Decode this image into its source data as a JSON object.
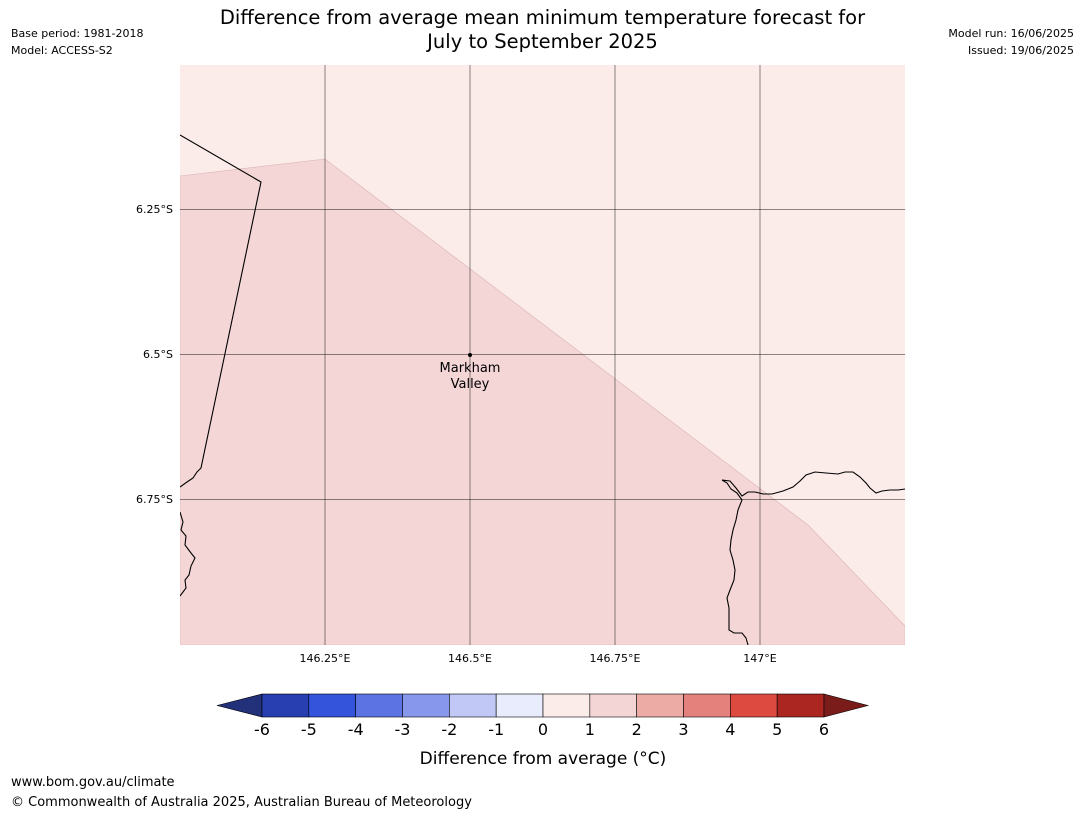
{
  "header": {
    "title_line1": "Difference from average mean minimum temperature forecast for",
    "title_line2": "July to September 2025",
    "base_period": "Base period: 1981-2018",
    "model": "Model: ACCESS-S2",
    "model_run": "Model run: 16/06/2025",
    "issued": "Issued: 19/06/2025"
  },
  "map": {
    "lat_labels": [
      "6.25°S",
      "6.5°S",
      "6.75°S"
    ],
    "lon_labels": [
      "146.25°E",
      "146.5°E",
      "146.75°E",
      "147°E"
    ],
    "place": {
      "name_line1": "Markham",
      "name_line2": "Valley"
    },
    "zone_colors": {
      "upper": "#fbebe9",
      "lower": "#f4d6d6"
    }
  },
  "legend": {
    "label": "Difference from average (°C)",
    "ticks": [
      "-6",
      "-5",
      "-4",
      "-3",
      "-2",
      "-1",
      "0",
      "1",
      "2",
      "3",
      "4",
      "5",
      "6"
    ],
    "colors": [
      "#23307a",
      "#273fb1",
      "#3454dc",
      "#5c74e3",
      "#8798ec",
      "#c1c8f6",
      "#e9ecfd",
      "#fbebe9",
      "#f4d5d5",
      "#edaba6",
      "#e4817d",
      "#dc4a40",
      "#ab2620",
      "#7a1c19"
    ]
  },
  "footer": {
    "url": "www.bom.gov.au/climate",
    "copyright": "© Commonwealth of Australia 2025, Australian Bureau of Meteorology"
  }
}
